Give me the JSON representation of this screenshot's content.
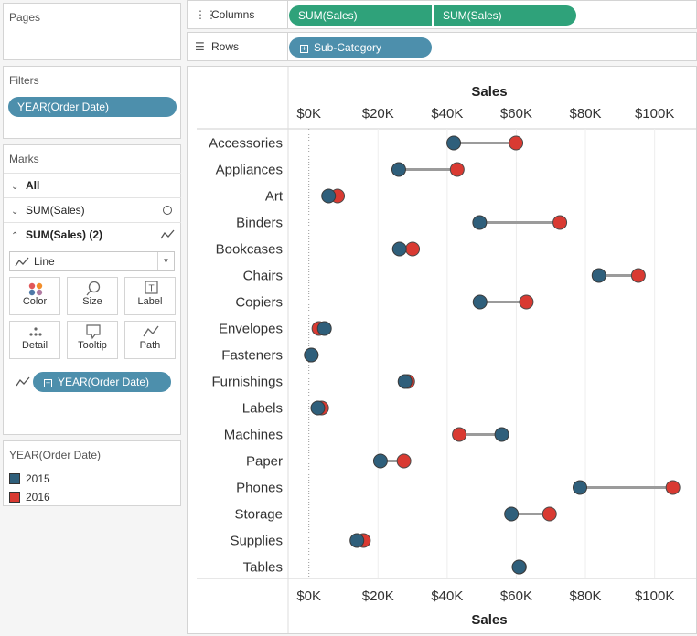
{
  "pages": {
    "title": "Pages"
  },
  "filters": {
    "title": "Filters",
    "pill": "YEAR(Order Date)"
  },
  "marks": {
    "title": "Marks",
    "rows": [
      {
        "label": "All",
        "chevron": "v"
      },
      {
        "label": "SUM(Sales)",
        "chevron": "v",
        "mark_icon": "circle"
      },
      {
        "label": "SUM(Sales) (2)",
        "chevron": "^",
        "mark_icon": "line",
        "bold": true
      }
    ],
    "mark_type": "Line",
    "cards": [
      {
        "label": "Color",
        "icon": "color-dots-icon"
      },
      {
        "label": "Size",
        "icon": "size-icon"
      },
      {
        "label": "Label",
        "icon": "label-icon"
      },
      {
        "label": "Detail",
        "icon": "detail-icon"
      },
      {
        "label": "Tooltip",
        "icon": "tooltip-icon"
      },
      {
        "label": "Path",
        "icon": "path-icon"
      }
    ],
    "path_pill": "YEAR(Order Date)"
  },
  "legend": {
    "title": "YEAR(Order Date)",
    "items": [
      {
        "label": "2015",
        "color": "#2f5f7b"
      },
      {
        "label": "2016",
        "color": "#d93a32"
      }
    ]
  },
  "columns_shelf": {
    "label": "Columns",
    "pills": [
      "SUM(Sales)",
      "SUM(Sales)"
    ]
  },
  "rows_shelf": {
    "label": "Rows",
    "pill": "Sub-Category"
  },
  "colors": {
    "y2015": "#2f5f7b",
    "y2016": "#d93a32",
    "connector": "#9b9b9b",
    "pill_blue": "#4d8fac",
    "pill_green": "#2fa27a"
  },
  "chart_data": {
    "type": "dumbbell",
    "title": "",
    "xlabel": "Sales",
    "xlim": [
      -6000,
      112000
    ],
    "tick_values": [
      0,
      20000,
      40000,
      60000,
      80000,
      100000
    ],
    "tick_labels": [
      "$0K",
      "$20K",
      "$40K",
      "$60K",
      "$80K",
      "$100K"
    ],
    "categories": [
      "Accessories",
      "Appliances",
      "Art",
      "Binders",
      "Bookcases",
      "Chairs",
      "Copiers",
      "Envelopes",
      "Fasteners",
      "Furnishings",
      "Labels",
      "Machines",
      "Paper",
      "Phones",
      "Storage",
      "Supplies",
      "Tables"
    ],
    "series": [
      {
        "name": "2015",
        "values": [
          41900,
          26000,
          5700,
          49400,
          26200,
          83900,
          49500,
          4500,
          700,
          27800,
          2600,
          55800,
          20700,
          78400,
          58600,
          13900,
          60800
        ]
      },
      {
        "name": "2016",
        "values": [
          59900,
          42900,
          8300,
          72600,
          30000,
          95300,
          62900,
          2900,
          700,
          28600,
          3700,
          43500,
          27500,
          105300,
          69600,
          15800,
          60900
        ]
      }
    ]
  }
}
